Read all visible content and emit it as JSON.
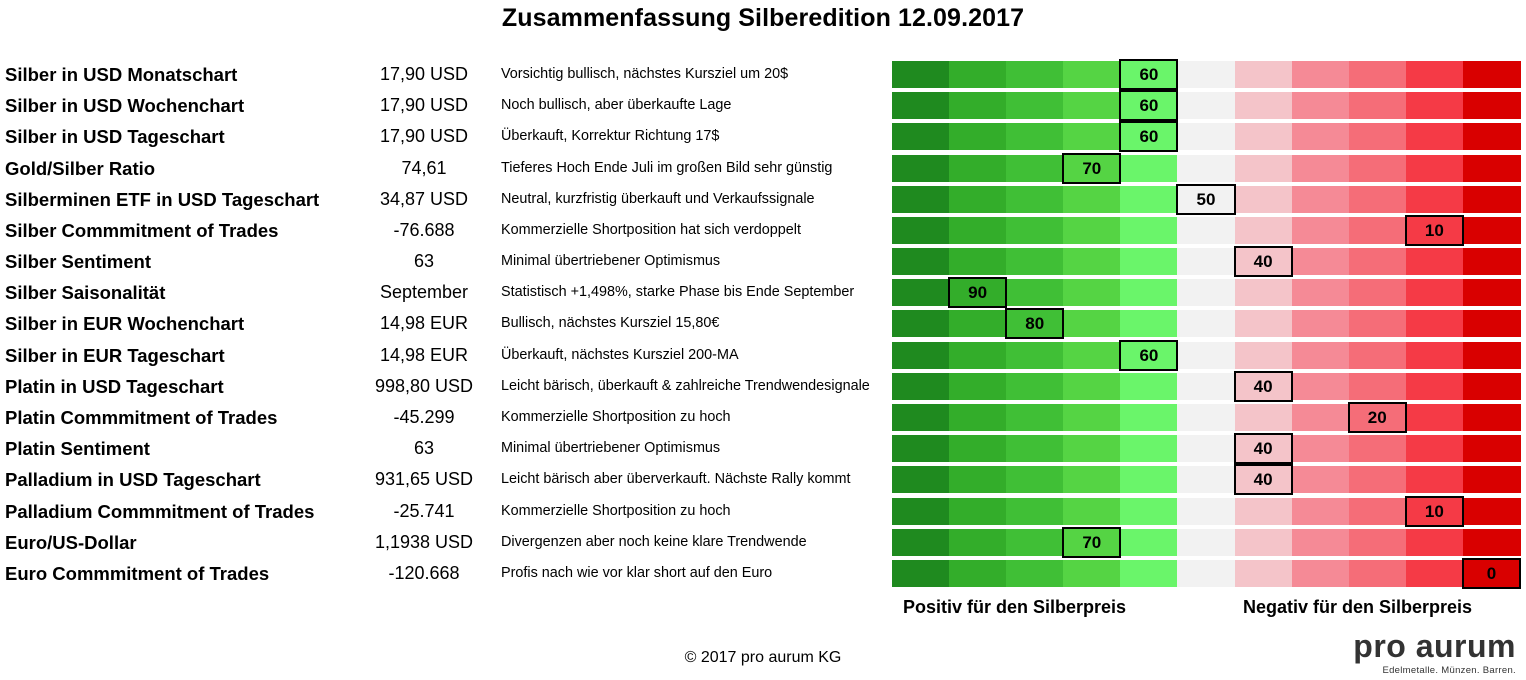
{
  "title": "Zusammenfassung Silberedition 12.09.2017",
  "chart_data": {
    "type": "table",
    "scale_min": 0,
    "scale_max": 100,
    "scale_colors": [
      "#1f8a1f",
      "#33ad2a",
      "#40bf36",
      "#55d444",
      "#6af56a",
      "#f2f2f2",
      "#f4c4c9",
      "#f58a96",
      "#f56d78",
      "#f53a46",
      "#d90000"
    ],
    "rows": [
      {
        "label": "Silber in USD Monatschart",
        "value": "17,90 USD",
        "comment": "Vorsichtig bullisch, nächstes Kursziel um 20$",
        "score": 60
      },
      {
        "label": "Silber in USD Wochenchart",
        "value": "17,90 USD",
        "comment": "Noch bullisch, aber überkaufte Lage",
        "score": 60
      },
      {
        "label": "Silber in USD Tageschart",
        "value": "17,90 USD",
        "comment": "Überkauft, Korrektur Richtung 17$",
        "score": 60
      },
      {
        "label": "Gold/Silber Ratio",
        "value": "74,61",
        "comment": "Tieferes Hoch Ende Juli im großen Bild sehr günstig",
        "score": 70
      },
      {
        "label": "Silberminen ETF in USD Tageschart",
        "value": "34,87 USD",
        "comment": "Neutral, kurzfristig überkauft und Verkaufssignale",
        "score": 50
      },
      {
        "label": "Silber Commmitment of Trades",
        "value": "-76.688",
        "comment": "Kommerzielle Shortposition hat sich verdoppelt",
        "score": 10
      },
      {
        "label": "Silber Sentiment",
        "value": "63",
        "comment": "Minimal übertriebener Optimismus",
        "score": 40
      },
      {
        "label": "Silber Saisonalität",
        "value": "September",
        "comment": "Statistisch +1,498%, starke Phase bis Ende September",
        "score": 90
      },
      {
        "label": "Silber in EUR Wochenchart",
        "value": "14,98 EUR",
        "comment": "Bullisch, nächstes Kursziel 15,80€",
        "score": 80
      },
      {
        "label": "Silber in EUR Tageschart",
        "value": "14,98 EUR",
        "comment": "Überkauft, nächstes Kursziel 200-MA",
        "score": 60
      },
      {
        "label": "Platin in USD Tageschart",
        "value": "998,80 USD",
        "comment": "Leicht bärisch, überkauft & zahlreiche Trendwendesignale",
        "score": 40
      },
      {
        "label": "Platin Commmitment of Trades",
        "value": "-45.299",
        "comment": "Kommerzielle Shortposition zu hoch",
        "score": 20
      },
      {
        "label": "Platin Sentiment",
        "value": "63",
        "comment": "Minimal übertriebener Optimismus",
        "score": 40
      },
      {
        "label": "Palladium in USD Tageschart",
        "value": "931,65 USD",
        "comment": "Leicht bärisch aber überverkauft. Nächste Rally kommt",
        "score": 40
      },
      {
        "label": "Palladium Commmitment of Trades",
        "value": "-25.741",
        "comment": "Kommerzielle Shortposition zu hoch",
        "score": 10
      },
      {
        "label": "Euro/US-Dollar",
        "value": "1,1938 USD",
        "comment": "Divergenzen aber noch keine klare Trendwende",
        "score": 70
      },
      {
        "label": "Euro Commmitment of Trades",
        "value": "-120.668",
        "comment": "Profis nach wie vor klar short auf den Euro",
        "score": 0
      }
    ]
  },
  "footer": {
    "positive_label": "Positiv für den Silberpreis",
    "negative_label": "Negativ für den Silberpreis",
    "copyright": "© 2017 pro aurum KG"
  },
  "logo": {
    "name": "pro aurum",
    "tagline": "Edelmetalle. Münzen. Barren."
  }
}
